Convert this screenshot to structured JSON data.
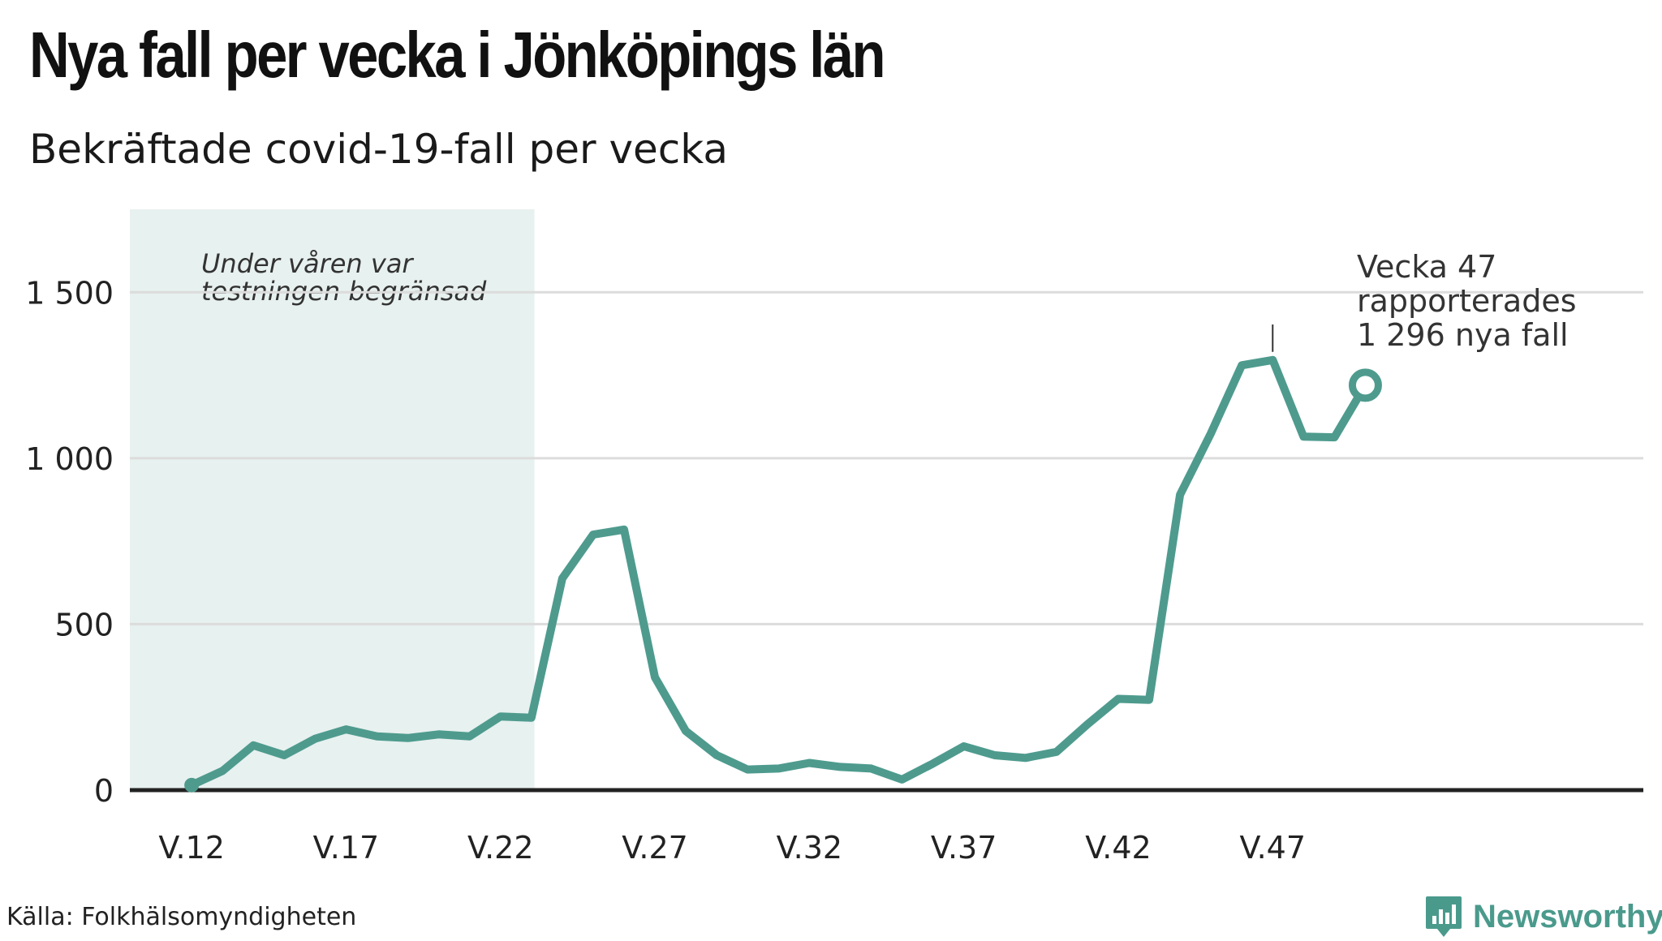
{
  "header": {
    "title": "Nya fall per vecka i Jönköpings län",
    "subtitle": "Bekräftade covid-19-fall per vecka"
  },
  "footer": {
    "source": "Källa: Folkhälsomyndigheten",
    "brand": "Newsworthy"
  },
  "colors": {
    "line": "#4e9b8e",
    "shade": "#e7f1ef",
    "grid": "#dcdcdc",
    "axis": "#222222",
    "brand": "#4a9a8c"
  },
  "chart_data": {
    "type": "line",
    "title": "Nya fall per vecka i Jönköpings län",
    "subtitle": "Bekräftade covid-19-fall per vecka",
    "xlabel": "",
    "ylabel": "",
    "ylim": [
      0,
      1750
    ],
    "xlim": [
      10,
      59
    ],
    "grid": true,
    "y_ticks": [
      0,
      500,
      1000,
      1500
    ],
    "y_tick_labels": [
      "0",
      "500",
      "1 000",
      "1 500"
    ],
    "x_ticks": [
      12,
      17,
      22,
      27,
      32,
      37,
      42,
      47
    ],
    "x_tick_labels": [
      "V.12",
      "V.17",
      "V.22",
      "V.27",
      "V.32",
      "V.37",
      "V.42",
      "V.47"
    ],
    "series": [
      {
        "name": "",
        "x": [
          12,
          13,
          14,
          15,
          16,
          17,
          18,
          19,
          20,
          21,
          22,
          23,
          24,
          25,
          26,
          27,
          28,
          29,
          30,
          31,
          32,
          33,
          34,
          35,
          36,
          37,
          38,
          39,
          40,
          41,
          42,
          43,
          44,
          45,
          46,
          47,
          48,
          49,
          50
        ],
        "values": [
          15,
          58,
          135,
          105,
          155,
          183,
          162,
          157,
          168,
          162,
          222,
          218,
          638,
          770,
          785,
          340,
          178,
          105,
          62,
          65,
          82,
          70,
          65,
          32,
          80,
          132,
          105,
          97,
          115,
          198,
          275,
          272,
          890,
          1075,
          1280,
          1296,
          1065,
          1063,
          1220
        ]
      }
    ],
    "shaded_region": {
      "x_start": 10,
      "x_end": 23.1,
      "label_line1": "Under våren var",
      "label_line2": "testningen begränsad"
    },
    "annotation": {
      "line1": "Vecka 47",
      "line2": "rapporterades",
      "line3": "1 296 nya fall",
      "x": 47,
      "y": 1296
    }
  }
}
